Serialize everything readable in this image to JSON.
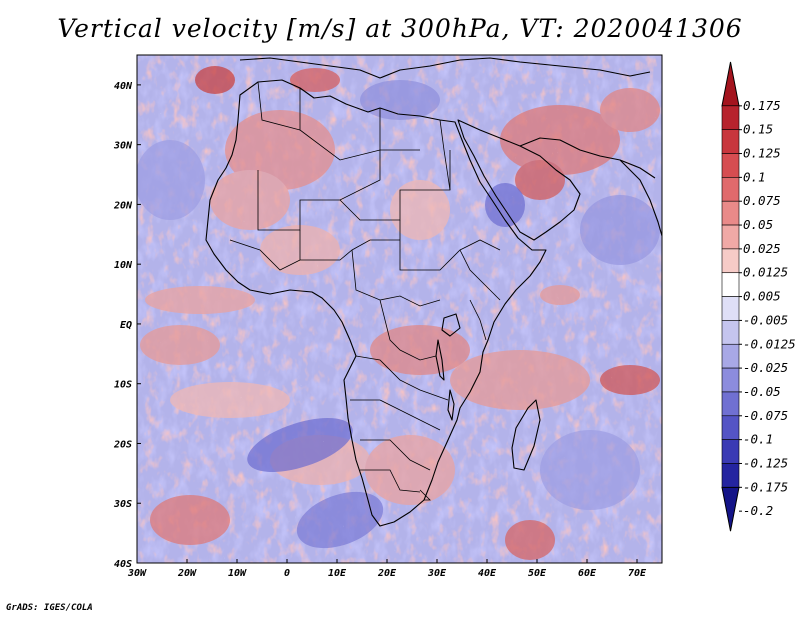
{
  "title": "Vertical velocity [m/s] at 300hPa, VT: 2020041306",
  "credit": "GrADS: IGES/COLA",
  "x_axis": {
    "ticks": [
      "30W",
      "20W",
      "10W",
      "0",
      "10E",
      "20E",
      "30E",
      "40E",
      "50E",
      "60E",
      "70E"
    ],
    "values": [
      -30,
      -20,
      -10,
      0,
      10,
      20,
      30,
      40,
      50,
      60,
      70
    ],
    "range": [
      -30,
      75
    ]
  },
  "y_axis": {
    "ticks": [
      "40N",
      "30N",
      "20N",
      "10N",
      "EQ",
      "10S",
      "20S",
      "30S",
      "40S"
    ],
    "values": [
      40,
      30,
      20,
      10,
      0,
      -10,
      -20,
      -30,
      -40
    ],
    "range": [
      -40,
      45
    ]
  },
  "colorbar": {
    "labels": [
      "0.175",
      "0.15",
      "0.125",
      "0.1",
      "0.075",
      "0.05",
      "0.025",
      "0.0125",
      "0.005",
      "-0.005",
      "-0.0125",
      "-0.025",
      "-0.05",
      "-0.075",
      "-0.1",
      "-0.125",
      "-0.175",
      "-0.2"
    ],
    "colors": [
      "#a4141e",
      "#b7232d",
      "#c8363d",
      "#d64d51",
      "#e06a6c",
      "#e98a89",
      "#f0a9a6",
      "#f6cbc7",
      "#ffffff",
      "#dfdff7",
      "#c5c5ef",
      "#a8a8e6",
      "#8c8cdd",
      "#7070d2",
      "#5454c5",
      "#3a3ab4",
      "#2424a0",
      "#141488"
    ]
  },
  "colors": {
    "ocean_base": "#b9b9ec",
    "warm": "#e9a2a0",
    "cool": "#8e8edf",
    "boundary": "#000000"
  }
}
